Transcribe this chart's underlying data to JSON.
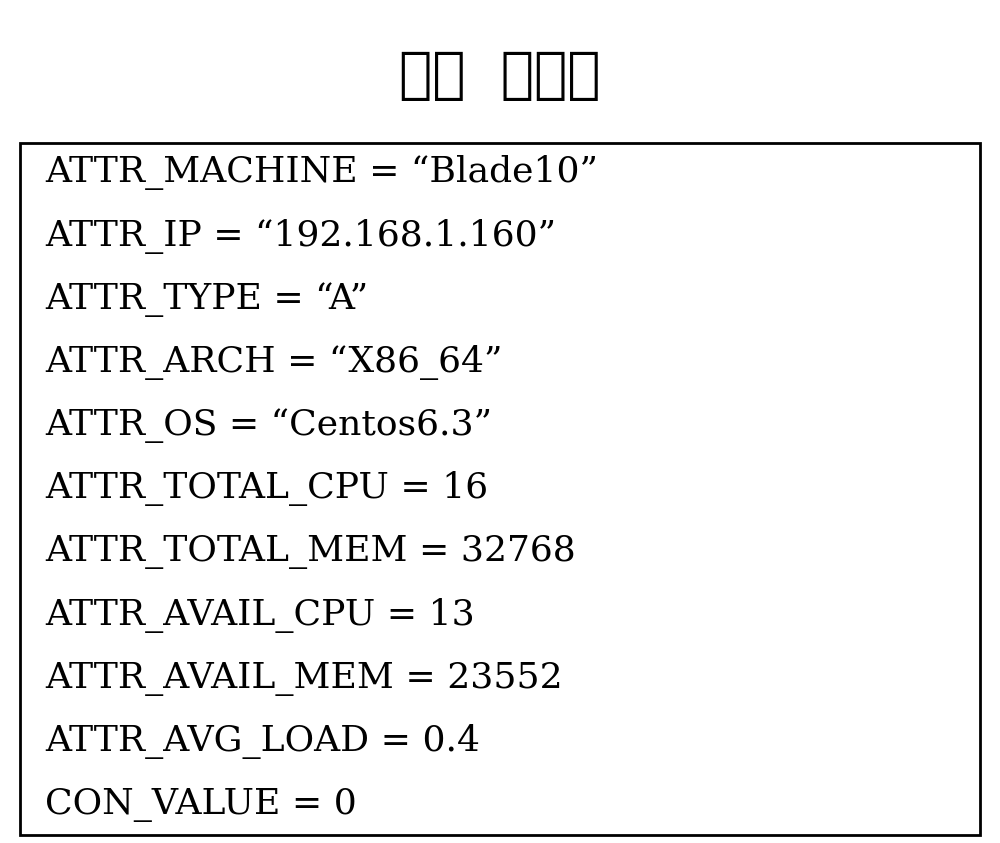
{
  "title": "机器  属性簼",
  "title_fontsize": 40,
  "lines": [
    "ATTR_MACHINE = “Blade10”",
    "ATTR_IP = “192.168.1.160”",
    "ATTR_TYPE = “A”",
    "ATTR_ARCH = “X86_64”",
    "ATTR_OS = “Centos6.3”",
    "ATTR_TOTAL_CPU = 16",
    "ATTR_TOTAL_MEM = 32768",
    "ATTR_AVAIL_CPU = 13",
    "ATTR_AVAIL_MEM = 23552",
    "ATTR_AVG_LOAD = 0.4",
    "CON_VALUE = 0"
  ],
  "line_fontsize": 26,
  "background_color": "#ffffff",
  "text_color": "#000000",
  "border_color": "#000000",
  "border_linewidth": 2.0,
  "fig_width": 10.0,
  "fig_height": 8.43,
  "dpi": 100
}
